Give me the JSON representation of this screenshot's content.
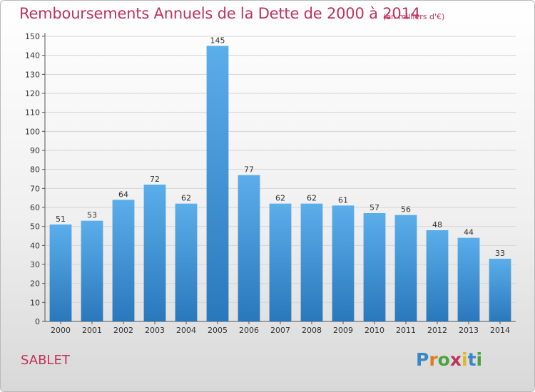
{
  "header": {
    "title": "Remboursements Annuels de la Dette de 2000 à 2014",
    "subtitle": "(en milliers d'€)"
  },
  "footer": {
    "commune": "SABLET",
    "logo_text": "Proxiti"
  },
  "colors": {
    "accent": "#c0325a",
    "bar_top": "#5aaeea",
    "bar_bottom": "#2a78bc"
  },
  "chart_data": {
    "type": "bar",
    "categories": [
      "2000",
      "2001",
      "2002",
      "2003",
      "2004",
      "2005",
      "2006",
      "2007",
      "2008",
      "2009",
      "2010",
      "2011",
      "2012",
      "2013",
      "2014"
    ],
    "values": [
      51,
      53,
      64,
      72,
      62,
      145,
      77,
      62,
      62,
      61,
      57,
      56,
      48,
      44,
      33
    ],
    "title": "Remboursements Annuels de la Dette de 2000 à 2014",
    "ylim": [
      0,
      150
    ],
    "yticks": [
      0,
      10,
      20,
      30,
      40,
      50,
      60,
      70,
      80,
      90,
      100,
      110,
      120,
      130,
      140,
      150
    ],
    "grid": true,
    "legend": "none"
  }
}
